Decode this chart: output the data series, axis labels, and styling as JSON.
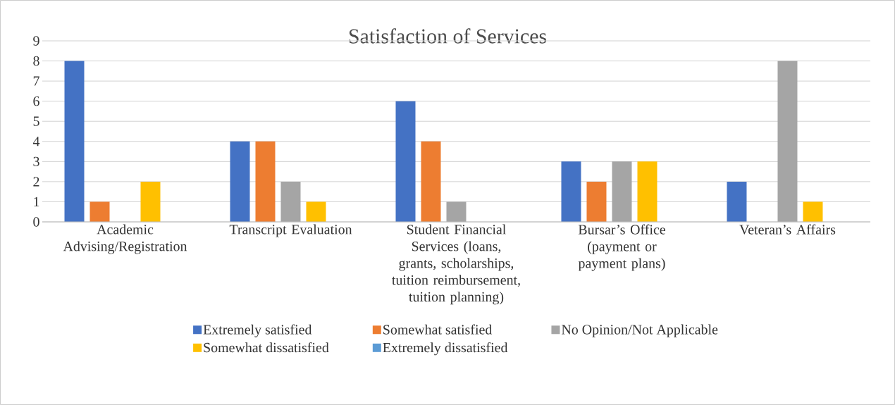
{
  "chart_data": {
    "type": "bar",
    "title": "Satisfaction of Services",
    "categories": [
      "Academic Advising/Registration",
      "Transcript Evaluation",
      "Student Financial Services (loans, grants, scholarships, tuition reimbursement, tuition planning)",
      "Bursar’s Office (payment or payment plans)",
      "Veteran’s Affairs"
    ],
    "series": [
      {
        "name": "Extremely satisfied",
        "color": "#4472c4",
        "values": [
          8,
          4,
          6,
          3,
          2
        ]
      },
      {
        "name": "Somewhat satisfied",
        "color": "#ed7d31",
        "values": [
          1,
          4,
          4,
          2,
          0
        ]
      },
      {
        "name": "No Opinion/Not Applicable",
        "color": "#a5a5a5",
        "values": [
          0,
          2,
          1,
          3,
          8
        ]
      },
      {
        "name": "Somewhat dissatisfied",
        "color": "#ffc000",
        "values": [
          2,
          1,
          0,
          3,
          1
        ]
      },
      {
        "name": "Extremely dissatisfied",
        "color": "#5b9bd5",
        "values": [
          0,
          0,
          0,
          0,
          0
        ]
      }
    ],
    "ylim": [
      0,
      9
    ],
    "yticks": [
      0,
      1,
      2,
      3,
      4,
      5,
      6,
      7,
      8,
      9
    ],
    "grid": "y",
    "legend": "bottom"
  }
}
